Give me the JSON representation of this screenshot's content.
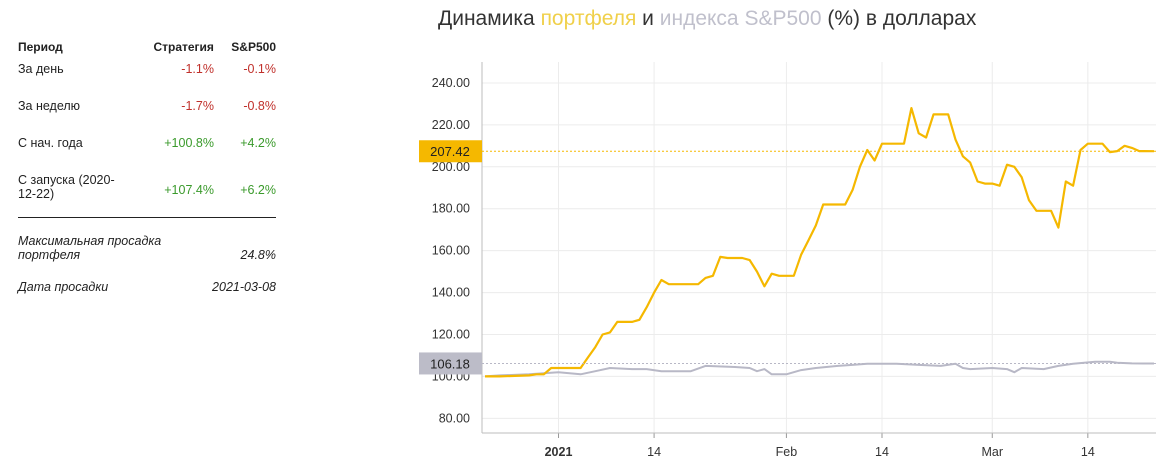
{
  "table": {
    "headers": [
      "Период",
      "Стратегия",
      "S&P500"
    ],
    "rows": [
      {
        "period": "За день",
        "strategy": "-1.1%",
        "sp": "-0.1%"
      },
      {
        "period": "За неделю",
        "strategy": "-1.7%",
        "sp": "-0.8%"
      },
      {
        "period": "С нач. года",
        "strategy": "+100.8%",
        "sp": "+4.2%"
      },
      {
        "period": "С запуска (2020-12-22)",
        "strategy": "+107.4%",
        "sp": "+6.2%"
      }
    ],
    "drawdown_label": "Максимальная просадка портфеля",
    "drawdown_value": "24.8%",
    "drawdown_date_label": "Дата просадки",
    "drawdown_date_value": "2021-03-08"
  },
  "title": {
    "part1": "Динамика ",
    "highlight1": "портфеля",
    "part2": " и ",
    "highlight2": "индекса S&P500",
    "part3": " (%) в долларах"
  },
  "colors": {
    "portfolio": "#f5b800",
    "index": "#b8b8c6",
    "portfolio_tag": "#f5b800",
    "index_tag": "#bcbcc8"
  },
  "chart_data": {
    "type": "line",
    "xlabel": "",
    "ylabel": "",
    "ylim": [
      73,
      250
    ],
    "yticks": [
      80,
      100,
      120,
      140,
      160,
      180,
      200,
      220,
      240
    ],
    "ytick_labels": [
      "80.00",
      "100.00",
      "120.00",
      "140.00",
      "160.00",
      "180.00",
      "200.00",
      "220.00",
      "240.00"
    ],
    "x_start_date": "2020-12-22",
    "x_end_date": "2021-03-23",
    "x_ticks": [
      {
        "date": "2021-01-01",
        "label": "2021",
        "bold": true
      },
      {
        "date": "2021-01-14",
        "label": "14",
        "bold": false
      },
      {
        "date": "2021-02-01",
        "label": "Feb",
        "bold": false
      },
      {
        "date": "2021-02-14",
        "label": "14",
        "bold": false
      },
      {
        "date": "2021-03-01",
        "label": "Mar",
        "bold": false
      },
      {
        "date": "2021-03-14",
        "label": "14",
        "bold": false
      }
    ],
    "grid": true,
    "last_value_tags": {
      "portfolio": "207.42",
      "index": "106.18"
    },
    "series": [
      {
        "key": "portfolio",
        "points": [
          [
            "2020-12-22",
            100
          ],
          [
            "2020-12-23",
            100
          ],
          [
            "2020-12-24",
            100
          ],
          [
            "2020-12-28",
            100.5
          ],
          [
            "2020-12-29",
            101
          ],
          [
            "2020-12-30",
            101
          ],
          [
            "2020-12-31",
            104
          ],
          [
            "2021-01-04",
            104
          ],
          [
            "2021-01-05",
            109
          ],
          [
            "2021-01-06",
            114
          ],
          [
            "2021-01-07",
            120
          ],
          [
            "2021-01-08",
            121
          ],
          [
            "2021-01-09",
            126
          ],
          [
            "2021-01-11",
            126
          ],
          [
            "2021-01-12",
            127
          ],
          [
            "2021-01-13",
            133
          ],
          [
            "2021-01-14",
            140
          ],
          [
            "2021-01-15",
            146
          ],
          [
            "2021-01-16",
            144
          ],
          [
            "2021-01-19",
            144
          ],
          [
            "2021-01-20",
            144
          ],
          [
            "2021-01-21",
            147
          ],
          [
            "2021-01-22",
            148
          ],
          [
            "2021-01-23",
            157
          ],
          [
            "2021-01-24",
            156.5
          ],
          [
            "2021-01-26",
            156.5
          ],
          [
            "2021-01-27",
            155.5
          ],
          [
            "2021-01-28",
            150
          ],
          [
            "2021-01-29",
            143
          ],
          [
            "2021-01-30",
            149
          ],
          [
            "2021-01-31",
            148
          ],
          [
            "2021-02-02",
            148
          ],
          [
            "2021-02-03",
            158
          ],
          [
            "2021-02-04",
            165
          ],
          [
            "2021-02-05",
            172
          ],
          [
            "2021-02-06",
            182
          ],
          [
            "2021-02-07",
            182
          ],
          [
            "2021-02-08",
            182
          ],
          [
            "2021-02-09",
            182
          ],
          [
            "2021-02-10",
            189
          ],
          [
            "2021-02-11",
            200
          ],
          [
            "2021-02-12",
            208
          ],
          [
            "2021-02-13",
            203
          ],
          [
            "2021-02-14",
            211
          ],
          [
            "2021-02-16",
            211
          ],
          [
            "2021-02-17",
            211
          ],
          [
            "2021-02-18",
            228
          ],
          [
            "2021-02-19",
            216
          ],
          [
            "2021-02-20",
            214
          ],
          [
            "2021-02-21",
            225
          ],
          [
            "2021-02-23",
            225
          ],
          [
            "2021-02-24",
            213
          ],
          [
            "2021-02-25",
            205
          ],
          [
            "2021-02-26",
            202
          ],
          [
            "2021-02-27",
            193
          ],
          [
            "2021-02-28",
            192
          ],
          [
            "2021-03-01",
            192
          ],
          [
            "2021-03-02",
            191
          ],
          [
            "2021-03-03",
            201
          ],
          [
            "2021-03-04",
            200
          ],
          [
            "2021-03-05",
            195
          ],
          [
            "2021-03-06",
            184
          ],
          [
            "2021-03-07",
            179
          ],
          [
            "2021-03-08",
            179
          ],
          [
            "2021-03-09",
            179
          ],
          [
            "2021-03-10",
            171
          ],
          [
            "2021-03-11",
            193
          ],
          [
            "2021-03-12",
            191
          ],
          [
            "2021-03-13",
            208
          ],
          [
            "2021-03-14",
            211
          ],
          [
            "2021-03-15",
            211
          ],
          [
            "2021-03-16",
            211
          ],
          [
            "2021-03-17",
            207
          ],
          [
            "2021-03-18",
            207.5
          ],
          [
            "2021-03-19",
            210
          ],
          [
            "2021-03-20",
            209
          ],
          [
            "2021-03-21",
            207.5
          ],
          [
            "2021-03-23",
            207.42
          ]
        ]
      },
      {
        "key": "index",
        "points": [
          [
            "2020-12-22",
            100
          ],
          [
            "2020-12-24",
            100.5
          ],
          [
            "2020-12-28",
            101
          ],
          [
            "2020-12-30",
            101.5
          ],
          [
            "2021-01-01",
            102
          ],
          [
            "2021-01-04",
            101
          ],
          [
            "2021-01-06",
            102.5
          ],
          [
            "2021-01-08",
            104
          ],
          [
            "2021-01-11",
            103.5
          ],
          [
            "2021-01-13",
            103.5
          ],
          [
            "2021-01-15",
            102.5
          ],
          [
            "2021-01-19",
            102.5
          ],
          [
            "2021-01-21",
            105
          ],
          [
            "2021-01-25",
            104.5
          ],
          [
            "2021-01-27",
            104
          ],
          [
            "2021-01-28",
            102.5
          ],
          [
            "2021-01-29",
            103.5
          ],
          [
            "2021-01-30",
            101
          ],
          [
            "2021-02-01",
            101
          ],
          [
            "2021-02-03",
            103
          ],
          [
            "2021-02-05",
            104
          ],
          [
            "2021-02-08",
            105
          ],
          [
            "2021-02-10",
            105.5
          ],
          [
            "2021-02-12",
            106
          ],
          [
            "2021-02-16",
            106
          ],
          [
            "2021-02-19",
            105.5
          ],
          [
            "2021-02-22",
            105
          ],
          [
            "2021-02-24",
            106
          ],
          [
            "2021-02-25",
            104
          ],
          [
            "2021-02-26",
            103.5
          ],
          [
            "2021-03-01",
            104
          ],
          [
            "2021-03-03",
            103.5
          ],
          [
            "2021-03-04",
            102
          ],
          [
            "2021-03-05",
            104
          ],
          [
            "2021-03-08",
            103.5
          ],
          [
            "2021-03-10",
            105
          ],
          [
            "2021-03-12",
            106
          ],
          [
            "2021-03-15",
            107
          ],
          [
            "2021-03-17",
            107
          ],
          [
            "2021-03-18",
            106.5
          ],
          [
            "2021-03-20",
            106.2
          ],
          [
            "2021-03-23",
            106.18
          ]
        ]
      }
    ]
  }
}
